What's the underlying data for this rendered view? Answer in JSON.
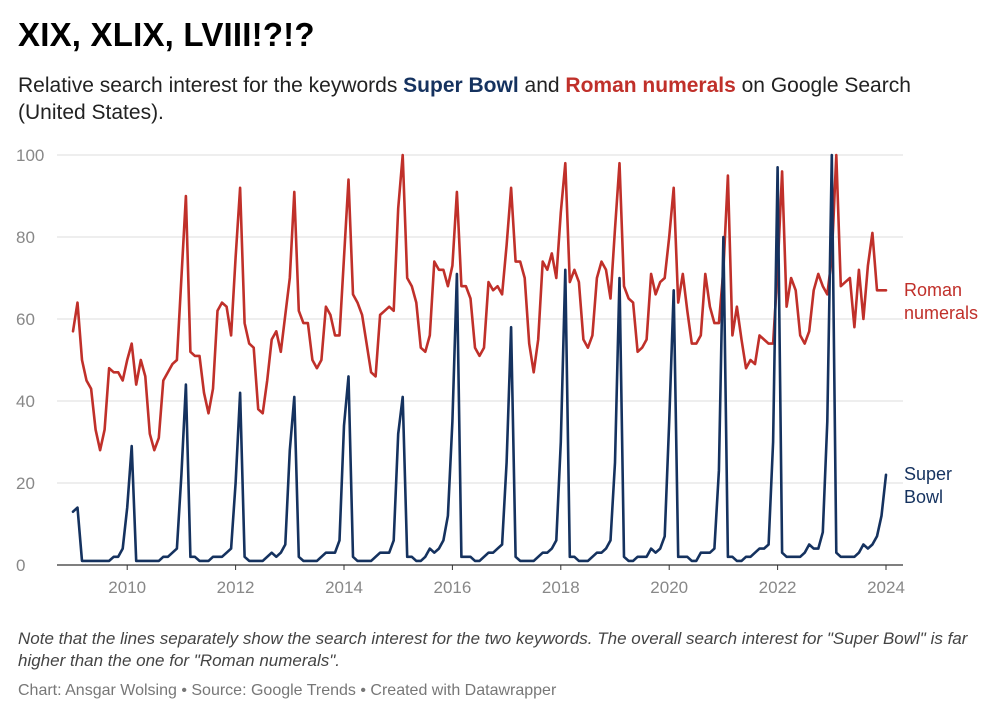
{
  "title": "XIX, XLIX, LVIII!?!?",
  "subtitle": {
    "before": "Relative search interest for the keywords ",
    "kw1": "Super Bowl",
    "middle": " and ",
    "kw2": "Roman numerals",
    "after": " on Google Search (United States)."
  },
  "note": "Note that the lines separately show the search interest for the two keywords. The overall search interest for \"Super Bowl\" is far higher than the one for \"Roman numerals\".",
  "footer": "Chart: Ansgar Wolsing • Source: Google Trends • Created with Datawrapper",
  "chart_data": {
    "type": "line",
    "x_unit": "month",
    "x_start": "2009-01",
    "x_end": "2024-01",
    "xlim": [
      "2009-01",
      "2024-01"
    ],
    "ylim": [
      0,
      100
    ],
    "y_ticks": [
      0,
      20,
      40,
      60,
      80,
      100
    ],
    "x_ticks": [
      "2010",
      "2012",
      "2014",
      "2016",
      "2018",
      "2020",
      "2022",
      "2024"
    ],
    "grid": true,
    "legend": "inline labels at right end of lines",
    "series": [
      {
        "name": "Roman numerals",
        "label_lines": [
          "Roman",
          "numerals"
        ],
        "color": "#c0302a",
        "values": [
          57,
          64,
          50,
          45,
          43,
          33,
          28,
          33,
          48,
          47,
          47,
          45,
          50,
          54,
          44,
          50,
          46,
          32,
          28,
          31,
          45,
          47,
          49,
          50,
          70,
          90,
          52,
          51,
          51,
          42,
          37,
          43,
          62,
          64,
          63,
          56,
          75,
          92,
          59,
          54,
          53,
          38,
          37,
          45,
          55,
          57,
          52,
          61,
          70,
          91,
          62,
          59,
          59,
          50,
          48,
          50,
          63,
          61,
          56,
          56,
          75,
          94,
          66,
          64,
          61,
          54,
          47,
          46,
          61,
          62,
          63,
          62,
          87,
          100,
          70,
          68,
          64,
          53,
          52,
          56,
          74,
          72,
          72,
          68,
          73,
          91,
          68,
          68,
          65,
          53,
          51,
          53,
          69,
          67,
          68,
          66,
          78,
          92,
          74,
          74,
          70,
          54,
          47,
          55,
          74,
          72,
          76,
          70,
          86,
          98,
          69,
          72,
          69,
          55,
          53,
          56,
          70,
          74,
          72,
          65,
          82,
          98,
          68,
          65,
          64,
          52,
          53,
          55,
          71,
          66,
          69,
          70,
          80,
          92,
          64,
          71,
          62,
          54,
          54,
          56,
          71,
          63,
          59,
          59,
          72,
          95,
          56,
          63,
          55,
          48,
          50,
          49,
          56,
          55,
          54,
          54,
          72,
          96,
          63,
          70,
          67,
          56,
          54,
          57,
          67,
          71,
          68,
          66,
          75,
          100,
          68,
          69,
          70,
          58,
          72,
          60,
          73,
          81,
          67,
          67,
          67
        ]
      },
      {
        "name": "Super Bowl",
        "label_lines": [
          "Super",
          "Bowl"
        ],
        "color": "#15325f",
        "values": [
          13,
          14,
          1,
          1,
          1,
          1,
          1,
          1,
          1,
          2,
          2,
          4,
          14,
          29,
          1,
          1,
          1,
          1,
          1,
          1,
          2,
          2,
          3,
          4,
          22,
          44,
          2,
          2,
          1,
          1,
          1,
          2,
          2,
          2,
          3,
          4,
          20,
          42,
          2,
          1,
          1,
          1,
          1,
          2,
          3,
          2,
          3,
          5,
          28,
          41,
          2,
          1,
          1,
          1,
          1,
          2,
          3,
          3,
          3,
          6,
          34,
          46,
          2,
          1,
          1,
          1,
          1,
          2,
          3,
          3,
          3,
          6,
          32,
          41,
          2,
          2,
          1,
          1,
          2,
          4,
          3,
          4,
          6,
          12,
          35,
          71,
          2,
          2,
          2,
          1,
          1,
          2,
          3,
          3,
          4,
          5,
          25,
          58,
          2,
          1,
          1,
          1,
          1,
          2,
          3,
          3,
          4,
          6,
          30,
          72,
          2,
          2,
          1,
          1,
          1,
          2,
          3,
          3,
          4,
          6,
          25,
          70,
          2,
          1,
          1,
          2,
          2,
          2,
          4,
          3,
          4,
          7,
          35,
          67,
          2,
          2,
          2,
          1,
          1,
          3,
          3,
          3,
          4,
          23,
          80,
          2,
          2,
          1,
          1,
          2,
          2,
          3,
          4,
          4,
          5,
          30,
          97,
          3,
          2,
          2,
          2,
          2,
          3,
          5,
          4,
          4,
          8,
          35,
          100,
          3,
          2,
          2,
          2,
          2,
          3,
          5,
          4,
          5,
          7,
          12,
          22
        ]
      }
    ]
  }
}
